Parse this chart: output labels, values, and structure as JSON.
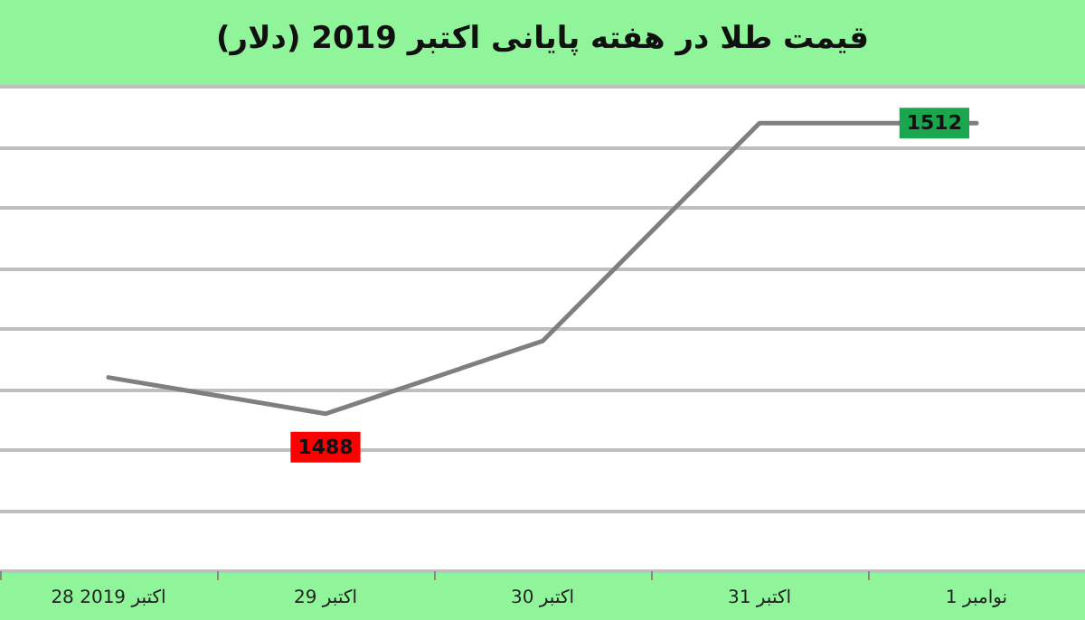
{
  "chart_data": {
    "type": "line",
    "title": "قیمت طلا در هفته پایانی اکتبر 2019 (دلار)",
    "categories": [
      "28 اکتبر 2019",
      "29 اکتبر",
      "30 اکتبر",
      "31 اکتبر",
      "1 نوامبر"
    ],
    "series": [
      {
        "color": "#7f7f7f",
        "values": [
          1491,
          1488,
          1494,
          1512,
          1512
        ],
        "value_labels": [
          null,
          "1488",
          null,
          null,
          "1512"
        ]
      }
    ],
    "ylim": [
      1475,
      1515
    ],
    "yticks": [
      {
        "value": 1475,
        "label": null
      },
      {
        "value": 1480,
        "label": null
      },
      {
        "value": 1485,
        "label": null
      },
      {
        "value": 1490,
        "label": null
      },
      {
        "value": 1495,
        "label": null
      },
      {
        "value": 1500,
        "label": null
      },
      {
        "value": 1505,
        "label": null
      },
      {
        "value": 1510,
        "label": null
      },
      {
        "value": 1515,
        "label": null
      }
    ],
    "tick_labels": "x",
    "grid": "y",
    "marker": "none",
    "line_style": "solid"
  }
}
